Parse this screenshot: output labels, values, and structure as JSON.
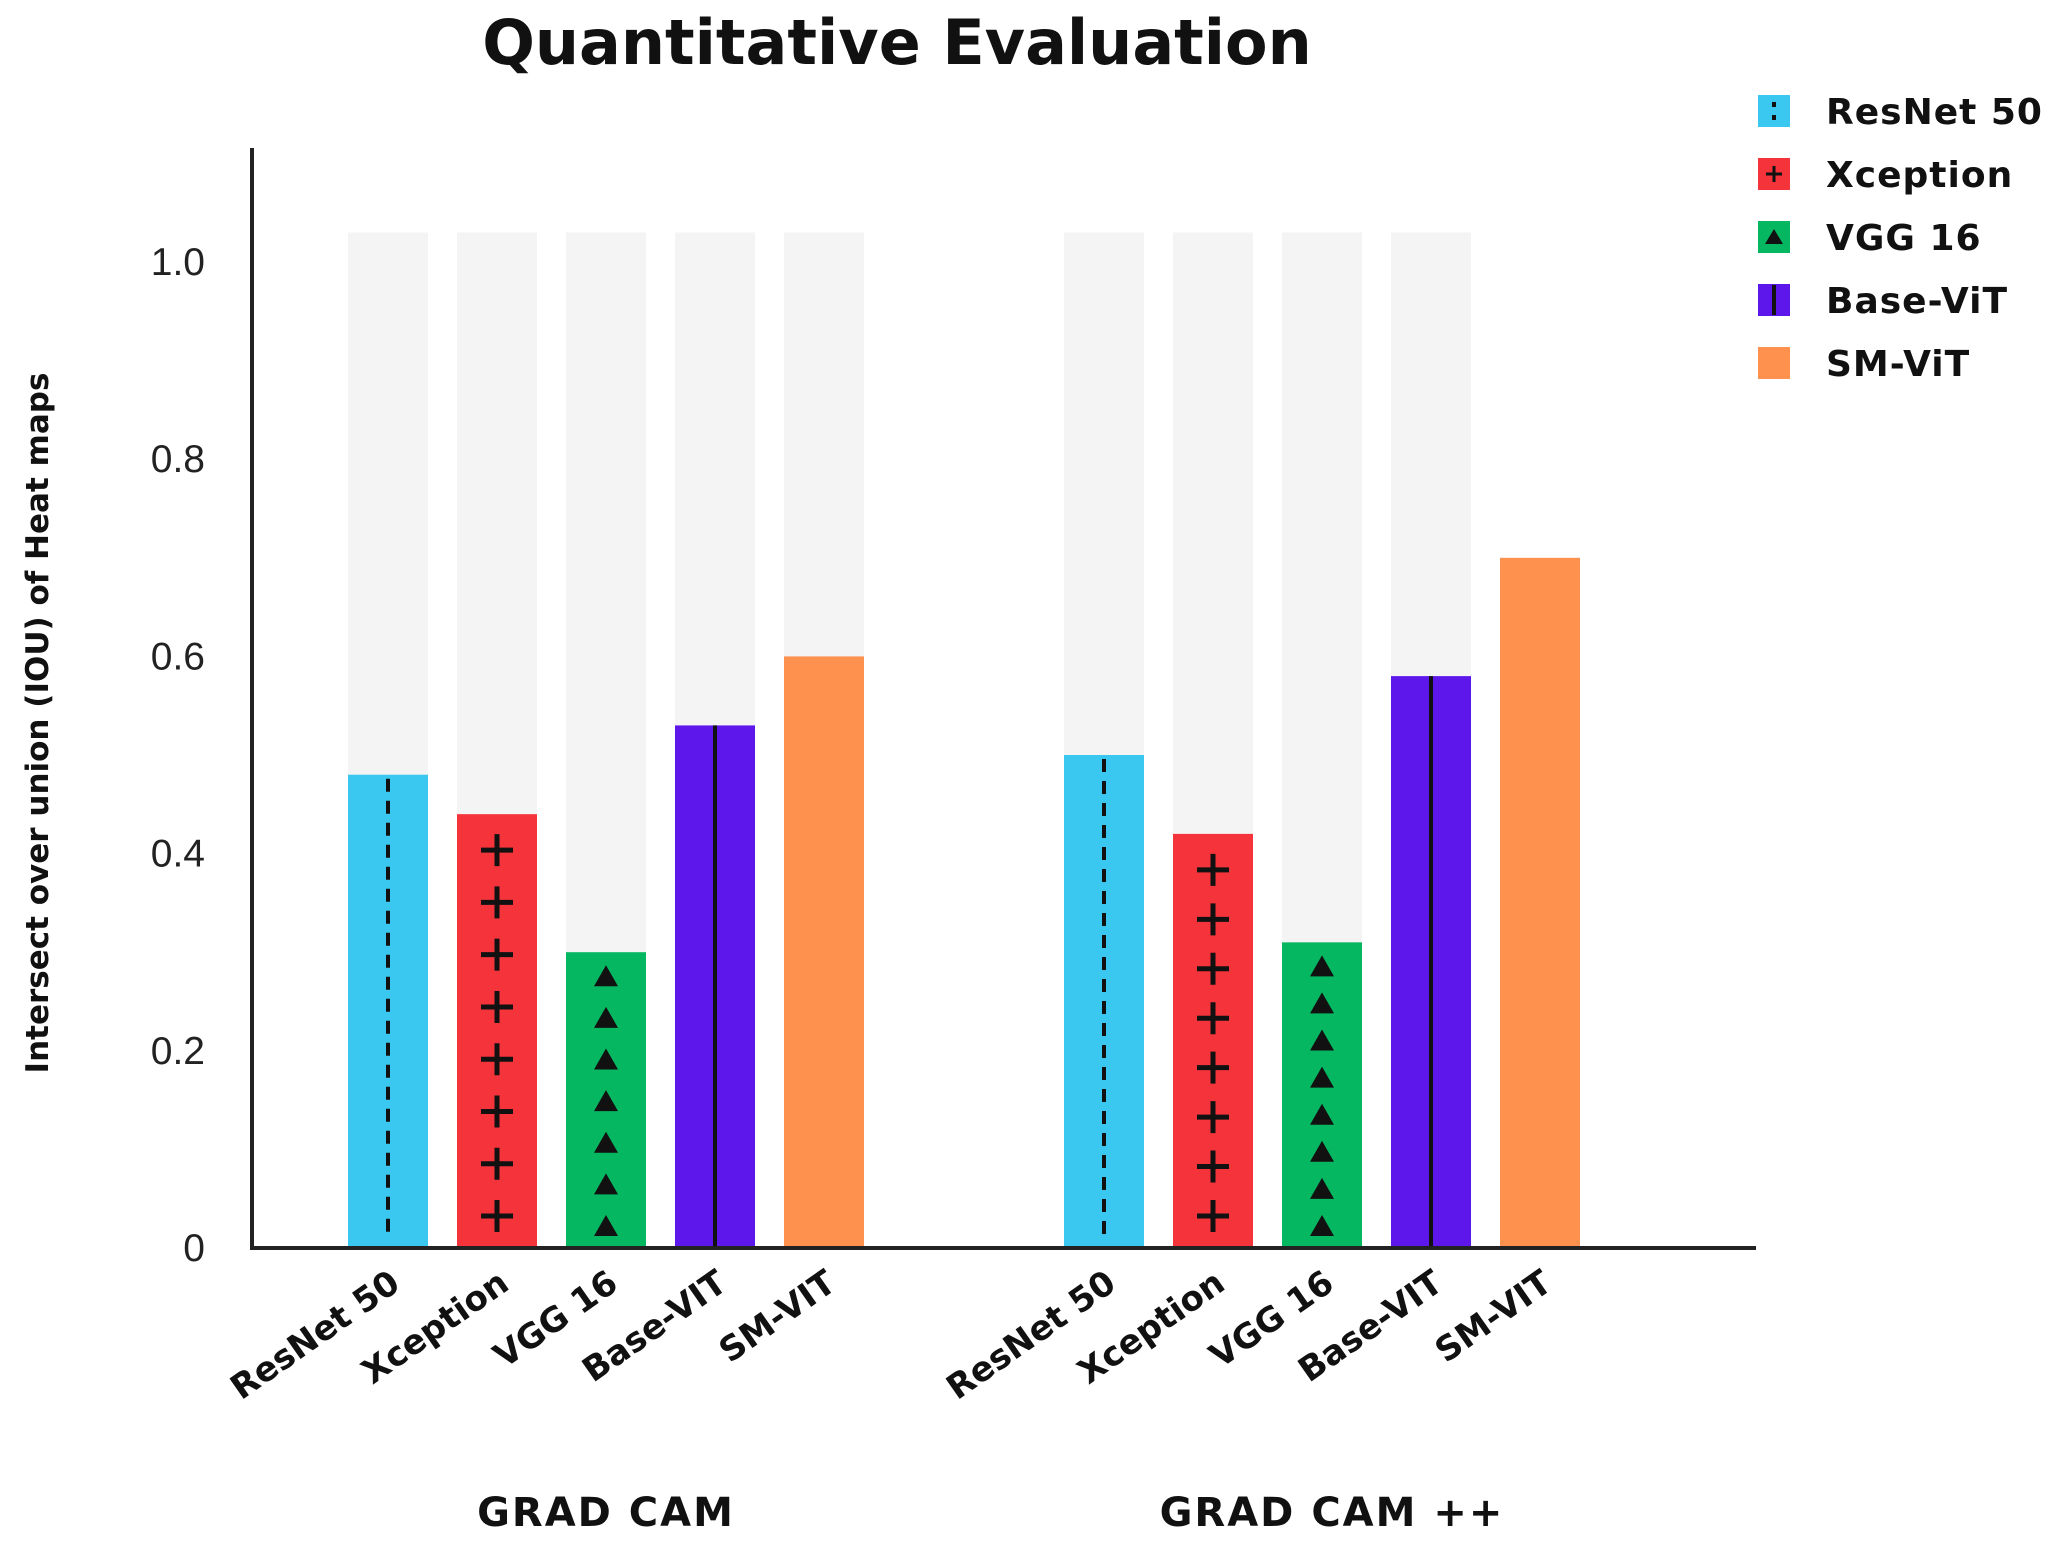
{
  "chart_data": {
    "type": "bar",
    "title": "Quantitative Evaluation",
    "ylabel": "Intersect over union (IOU) of Heat maps",
    "xlabel": "",
    "ylim": [
      0,
      1.1
    ],
    "yticks": [
      {
        "value": 0,
        "label": "0"
      },
      {
        "value": 0.2,
        "label": "0.2"
      },
      {
        "value": 0.4,
        "label": "0.4"
      },
      {
        "value": 0.6,
        "label": "0.6"
      },
      {
        "value": 0.8,
        "label": "0.8"
      },
      {
        "value": 1.0,
        "label": "1.0"
      }
    ],
    "background_bar_value": 1.03,
    "groups": [
      {
        "label": "GRAD CAM",
        "categories": [
          "ResNet 50",
          "Xception",
          "VGG 16",
          "Base-VIT",
          "SM-VIT"
        ],
        "values": [
          0.48,
          0.44,
          0.3,
          0.53,
          0.6
        ]
      },
      {
        "label": "GRAD CAM ++",
        "categories": [
          "ResNet 50",
          "Xception",
          "VGG 16",
          "Base-VIT",
          "SM-VIT"
        ],
        "values": [
          0.5,
          0.42,
          0.31,
          0.58,
          0.7
        ]
      }
    ],
    "series": [
      {
        "name": "ResNet 50",
        "color": "#3bc8f0",
        "pattern": "dashed-line"
      },
      {
        "name": "Xception",
        "color": "#f5333a",
        "pattern": "plus"
      },
      {
        "name": "VGG 16",
        "color": "#05b760",
        "pattern": "triangle"
      },
      {
        "name": "Base-ViT",
        "color": "#5e17eb",
        "pattern": "solid-line"
      },
      {
        "name": "SM-ViT",
        "color": "#fe914d",
        "pattern": "none"
      }
    ],
    "background_bar_color": "#f4f4f4",
    "legend_position": "top-right"
  }
}
